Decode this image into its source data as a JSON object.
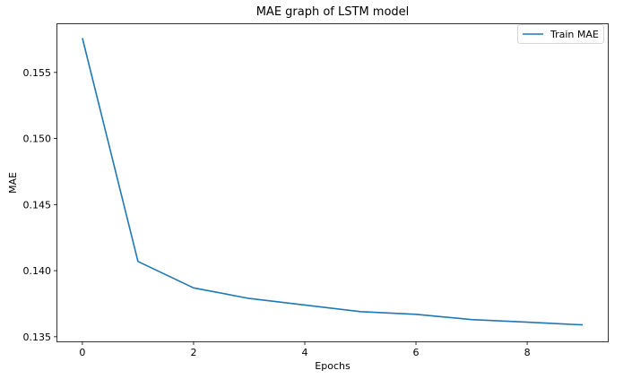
{
  "chart_data": {
    "type": "line",
    "title": "MAE graph of LSTM model",
    "xlabel": "Epochs",
    "ylabel": "MAE",
    "x": [
      0,
      1,
      2,
      3,
      4,
      5,
      6,
      7,
      8,
      9
    ],
    "xlim": [
      -0.45,
      9.45
    ],
    "ylim": [
      0.13465,
      0.15865
    ],
    "xticks": [
      0,
      2,
      4,
      6,
      8
    ],
    "yticks": [
      0.135,
      0.14,
      0.145,
      0.15,
      0.155
    ],
    "xtick_labels": [
      "0",
      "2",
      "4",
      "6",
      "8"
    ],
    "ytick_labels": [
      "0.135",
      "0.140",
      "0.145",
      "0.150",
      "0.155"
    ],
    "grid": false,
    "legend_position": "top-right",
    "series": [
      {
        "name": "Train MAE",
        "color": "#1f77b4",
        "values": [
          0.1576,
          0.1407,
          0.1387,
          0.1379,
          0.1374,
          0.1369,
          0.1367,
          0.1363,
          0.1361,
          0.1359
        ]
      }
    ]
  }
}
